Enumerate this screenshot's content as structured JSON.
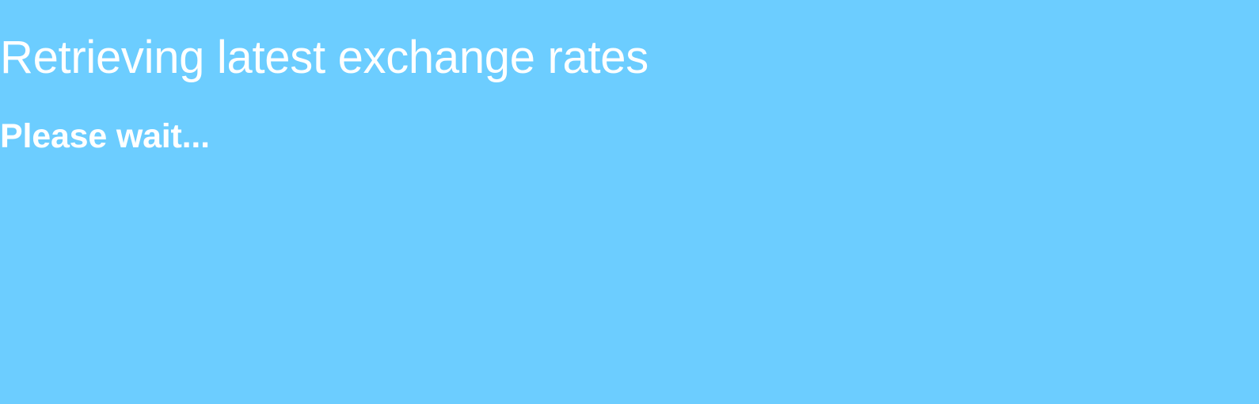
{
  "loading": {
    "title": "Retrieving latest exchange rates",
    "message": "Please wait..."
  },
  "colors": {
    "background": "#6ccdff",
    "text": "#ffffff"
  }
}
